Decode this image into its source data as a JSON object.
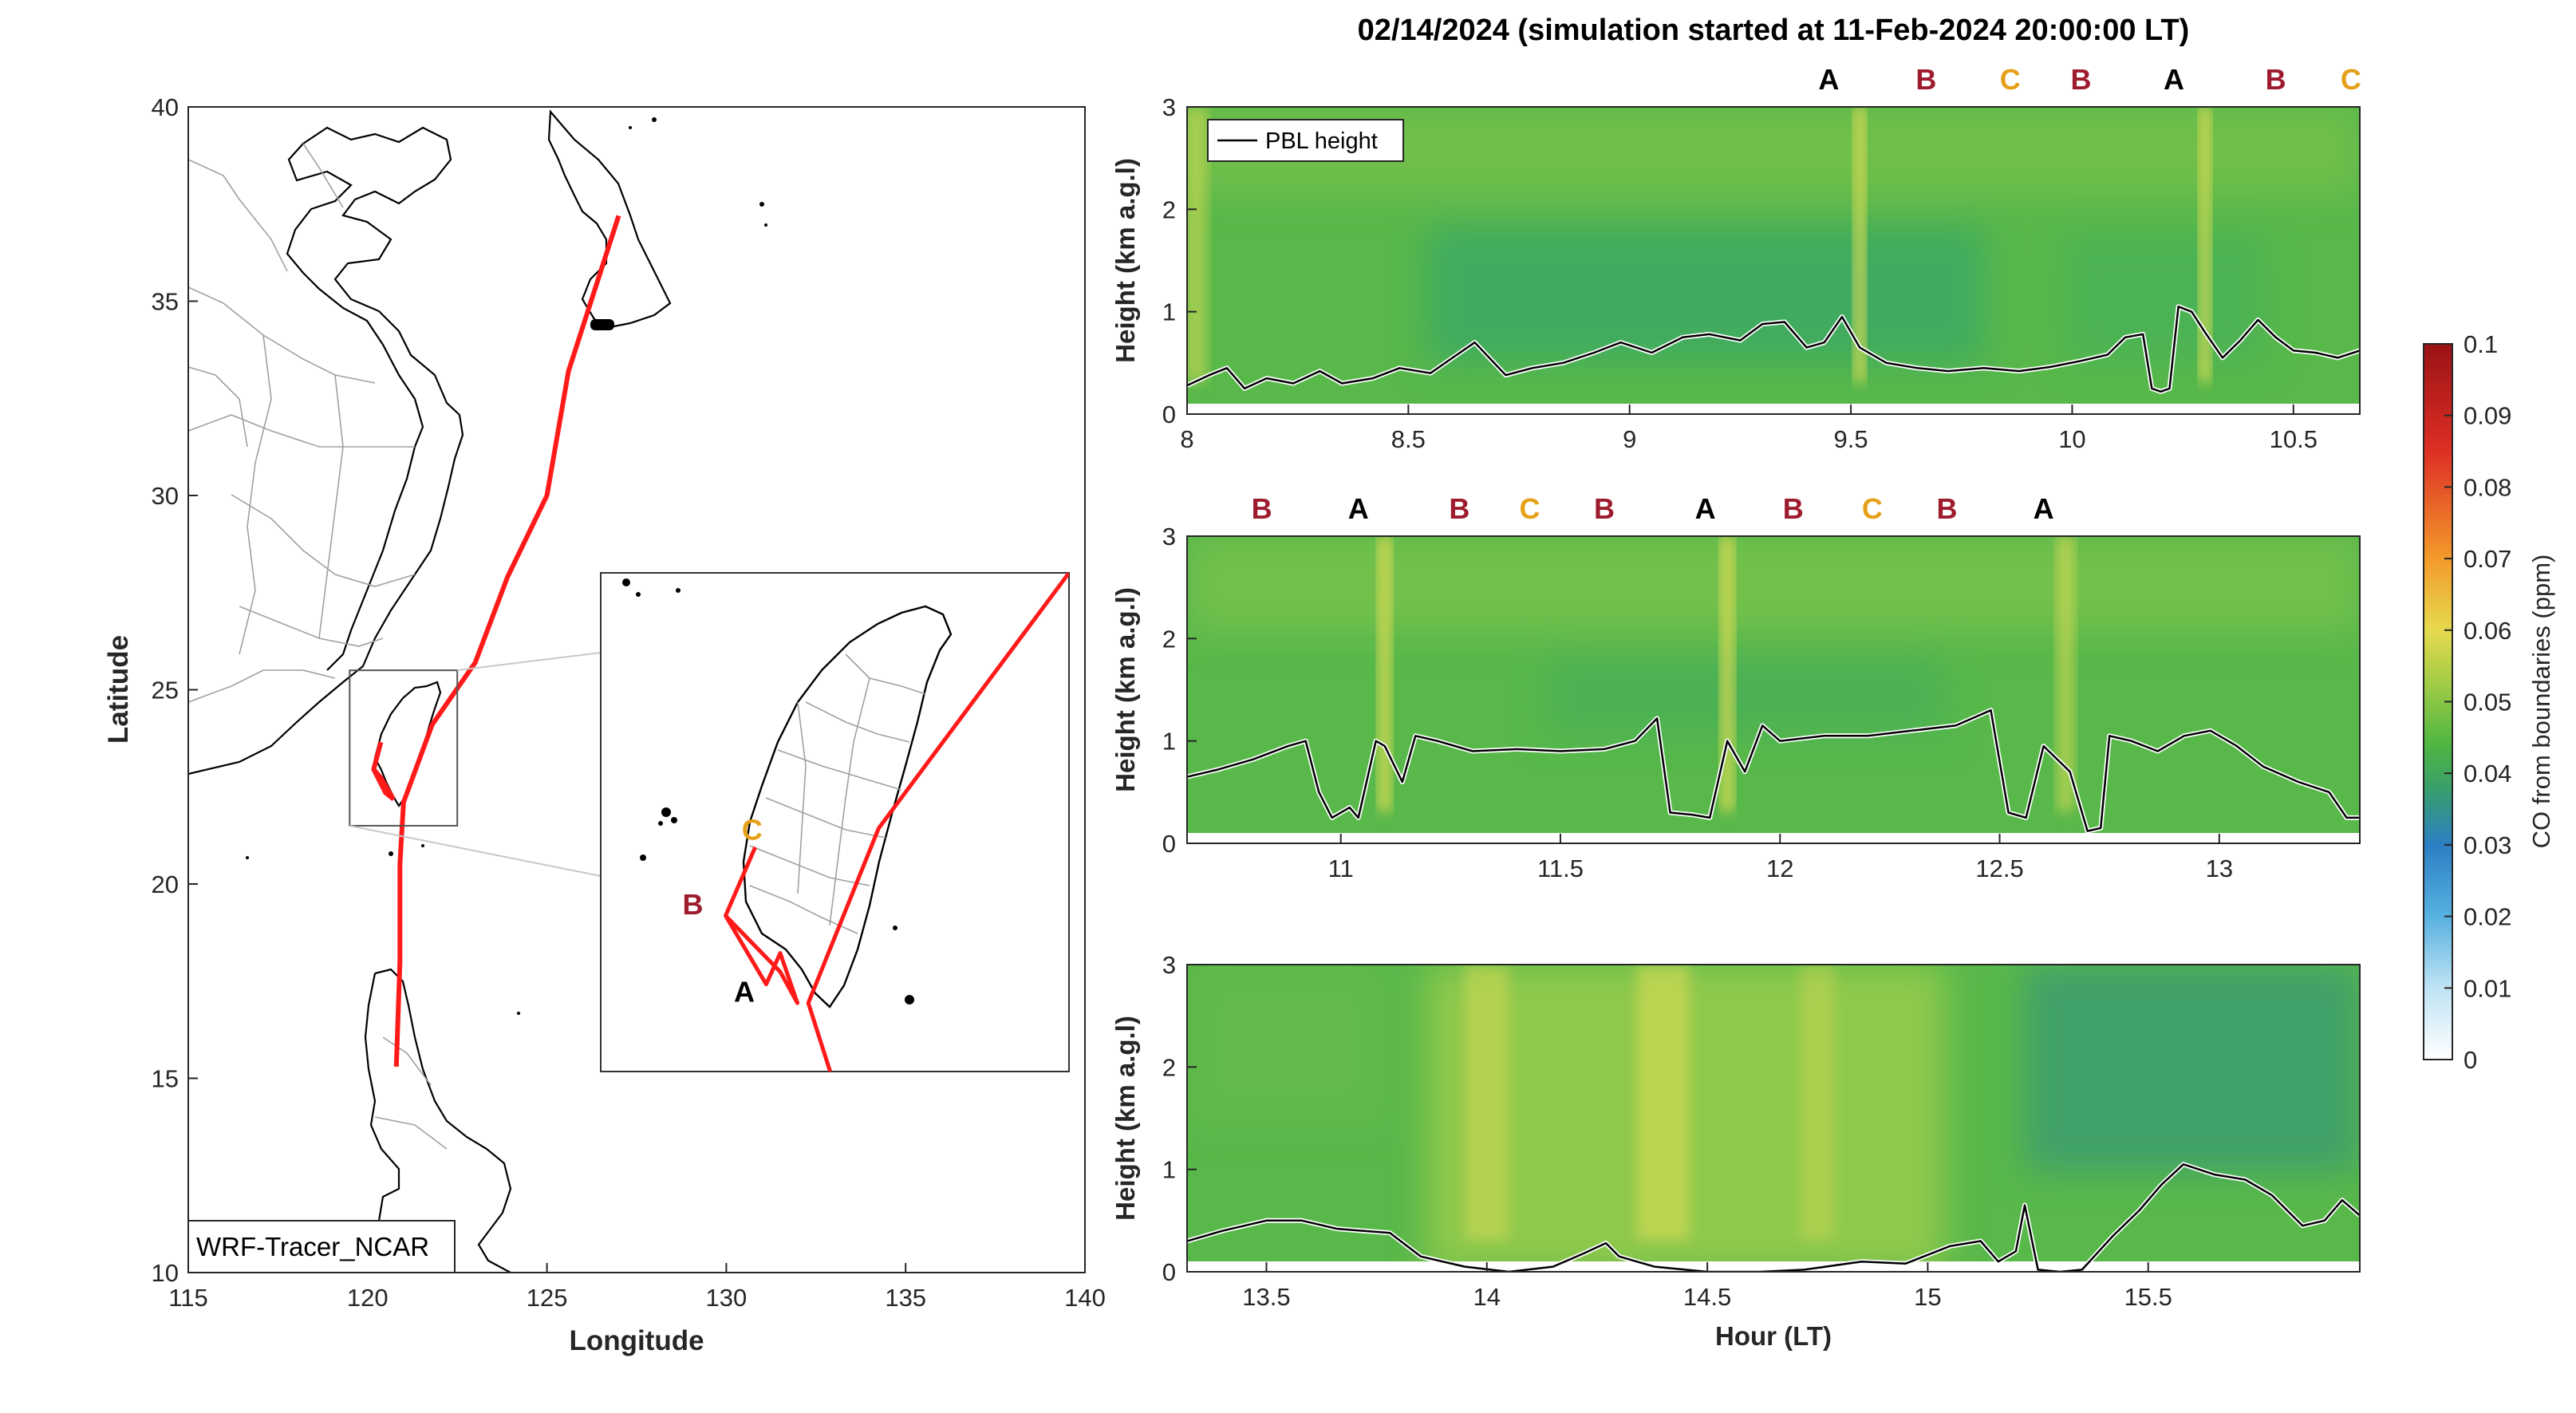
{
  "title": "02/14/2024 (simulation started at 11-Feb-2024 20:00:00 LT)",
  "colors": {
    "A": "#000000",
    "B": "#9e1b2e",
    "C": "#e6a11a",
    "track": "#ff1a1a",
    "pbl": "#000000"
  },
  "chart_data": [
    {
      "type": "map",
      "xlabel": "Longitude",
      "ylabel": "Latitude",
      "xlim": [
        115,
        140
      ],
      "ylim": [
        10,
        40
      ],
      "xticks": [
        "115",
        "120",
        "125",
        "130",
        "135",
        "140"
      ],
      "yticks": [
        "10",
        "15",
        "20",
        "25",
        "30",
        "35",
        "40"
      ],
      "label_box": "WRF-Tracer_NCAR",
      "inset_extent": {
        "lon": [
          119.5,
          122.5
        ],
        "lat": [
          21.5,
          25.5
        ]
      },
      "track": [
        [
          127.0,
          37.2
        ],
        [
          125.6,
          33.2
        ],
        [
          125.0,
          30.0
        ],
        [
          123.9,
          27.9
        ],
        [
          123.0,
          25.7
        ],
        [
          121.8,
          24.1
        ],
        [
          121.0,
          22.1
        ],
        [
          120.9,
          20.5
        ],
        [
          120.9,
          18.0
        ],
        [
          120.8,
          15.3
        ]
      ],
      "track_taiwan": [
        [
          120.37,
          23.65
        ],
        [
          120.17,
          22.95
        ],
        [
          120.38,
          22.72
        ],
        [
          120.72,
          22.18
        ]
      ],
      "track_taiwan_2": [
        [
          120.17,
          22.95
        ],
        [
          120.5,
          22.35
        ],
        [
          120.73,
          22.18
        ]
      ],
      "inset_track": [
        [
          122.5,
          25.5
        ],
        [
          121.28,
          23.45
        ],
        [
          120.83,
          22.05
        ],
        [
          120.97,
          21.5
        ]
      ],
      "inset_track_2": [
        [
          120.49,
          23.3
        ],
        [
          120.3,
          22.75
        ],
        [
          120.65,
          22.3
        ],
        [
          120.76,
          22.05
        ],
        [
          120.65,
          22.45
        ],
        [
          120.56,
          22.2
        ],
        [
          120.3,
          22.75
        ]
      ],
      "inset_labels": [
        {
          "text": "C",
          "lon": 120.47,
          "lat": 23.36,
          "cls": "C"
        },
        {
          "text": "B",
          "lon": 120.09,
          "lat": 22.76,
          "cls": "B"
        },
        {
          "text": "A",
          "lon": 120.42,
          "lat": 22.06,
          "cls": "A"
        }
      ]
    },
    {
      "type": "heatmap",
      "xlim": [
        8,
        10.65
      ],
      "ylim": [
        0,
        3
      ],
      "xticks": [
        "8",
        "8.5",
        "9",
        "9.5",
        "10",
        "10.5"
      ],
      "yticks": [
        "0",
        "1",
        "2",
        "3"
      ],
      "ylabel": "Height (km a.g.l)",
      "legend": "PBL height",
      "markers": [
        {
          "x": 9.45,
          "t": "A"
        },
        {
          "x": 9.67,
          "t": "B"
        },
        {
          "x": 9.86,
          "t": "C"
        },
        {
          "x": 10.02,
          "t": "B"
        },
        {
          "x": 10.23,
          "t": "A"
        },
        {
          "x": 10.46,
          "t": "B"
        },
        {
          "x": 10.63,
          "t": "C"
        }
      ],
      "plumes": [
        {
          "x": 8.02,
          "w": 0.05,
          "s": 0.55
        },
        {
          "x": 9.52,
          "w": 0.025,
          "s": 0.9
        },
        {
          "x": 10.3,
          "w": 0.025,
          "s": 0.9
        }
      ],
      "pbl": [
        [
          8.0,
          0.28
        ],
        [
          8.05,
          0.38
        ],
        [
          8.09,
          0.45
        ],
        [
          8.13,
          0.25
        ],
        [
          8.18,
          0.35
        ],
        [
          8.24,
          0.3
        ],
        [
          8.3,
          0.42
        ],
        [
          8.35,
          0.3
        ],
        [
          8.42,
          0.35
        ],
        [
          8.48,
          0.45
        ],
        [
          8.55,
          0.4
        ],
        [
          8.6,
          0.55
        ],
        [
          8.65,
          0.7
        ],
        [
          8.72,
          0.38
        ],
        [
          8.78,
          0.45
        ],
        [
          8.85,
          0.5
        ],
        [
          8.92,
          0.6
        ],
        [
          8.98,
          0.7
        ],
        [
          9.05,
          0.6
        ],
        [
          9.12,
          0.75
        ],
        [
          9.18,
          0.78
        ],
        [
          9.25,
          0.72
        ],
        [
          9.3,
          0.88
        ],
        [
          9.35,
          0.9
        ],
        [
          9.4,
          0.65
        ],
        [
          9.44,
          0.7
        ],
        [
          9.48,
          0.95
        ],
        [
          9.52,
          0.65
        ],
        [
          9.58,
          0.5
        ],
        [
          9.65,
          0.45
        ],
        [
          9.72,
          0.42
        ],
        [
          9.8,
          0.45
        ],
        [
          9.88,
          0.42
        ],
        [
          9.95,
          0.46
        ],
        [
          10.02,
          0.52
        ],
        [
          10.08,
          0.58
        ],
        [
          10.12,
          0.75
        ],
        [
          10.16,
          0.78
        ],
        [
          10.18,
          0.25
        ],
        [
          10.2,
          0.22
        ],
        [
          10.22,
          0.25
        ],
        [
          10.24,
          1.05
        ],
        [
          10.27,
          1.0
        ],
        [
          10.3,
          0.8
        ],
        [
          10.34,
          0.55
        ],
        [
          10.38,
          0.72
        ],
        [
          10.42,
          0.92
        ],
        [
          10.46,
          0.75
        ],
        [
          10.5,
          0.62
        ],
        [
          10.55,
          0.6
        ],
        [
          10.6,
          0.55
        ],
        [
          10.65,
          0.62
        ]
      ]
    },
    {
      "type": "heatmap",
      "xlim": [
        10.65,
        13.32
      ],
      "ylim": [
        0,
        3
      ],
      "xticks": [
        "11",
        "11.5",
        "12",
        "12.5",
        "13"
      ],
      "yticks": [
        "0",
        "1",
        "2",
        "3"
      ],
      "ylabel": "Height (km a.g.l)",
      "markers": [
        {
          "x": 10.82,
          "t": "B"
        },
        {
          "x": 11.04,
          "t": "A"
        },
        {
          "x": 11.27,
          "t": "B"
        },
        {
          "x": 11.43,
          "t": "C"
        },
        {
          "x": 11.6,
          "t": "B"
        },
        {
          "x": 11.83,
          "t": "A"
        },
        {
          "x": 12.03,
          "t": "B"
        },
        {
          "x": 12.21,
          "t": "C"
        },
        {
          "x": 12.38,
          "t": "B"
        },
        {
          "x": 12.6,
          "t": "A"
        }
      ],
      "plumes": [
        {
          "x": 11.1,
          "w": 0.03,
          "s": 0.85
        },
        {
          "x": 11.88,
          "w": 0.03,
          "s": 0.85
        },
        {
          "x": 12.65,
          "w": 0.04,
          "s": 0.6
        }
      ],
      "pbl": [
        [
          10.65,
          0.65
        ],
        [
          10.72,
          0.72
        ],
        [
          10.8,
          0.82
        ],
        [
          10.88,
          0.95
        ],
        [
          10.92,
          1.0
        ],
        [
          10.95,
          0.5
        ],
        [
          10.98,
          0.25
        ],
        [
          11.02,
          0.35
        ],
        [
          11.04,
          0.25
        ],
        [
          11.08,
          1.0
        ],
        [
          11.1,
          0.95
        ],
        [
          11.14,
          0.6
        ],
        [
          11.17,
          1.05
        ],
        [
          11.22,
          1.0
        ],
        [
          11.3,
          0.9
        ],
        [
          11.4,
          0.92
        ],
        [
          11.5,
          0.9
        ],
        [
          11.6,
          0.92
        ],
        [
          11.67,
          1.0
        ],
        [
          11.72,
          1.22
        ],
        [
          11.75,
          0.3
        ],
        [
          11.8,
          0.28
        ],
        [
          11.84,
          0.25
        ],
        [
          11.88,
          1.0
        ],
        [
          11.92,
          0.7
        ],
        [
          11.96,
          1.15
        ],
        [
          12.0,
          1.0
        ],
        [
          12.1,
          1.05
        ],
        [
          12.2,
          1.05
        ],
        [
          12.3,
          1.1
        ],
        [
          12.4,
          1.15
        ],
        [
          12.48,
          1.3
        ],
        [
          12.52,
          0.3
        ],
        [
          12.56,
          0.25
        ],
        [
          12.6,
          0.95
        ],
        [
          12.66,
          0.7
        ],
        [
          12.7,
          0.12
        ],
        [
          12.73,
          0.15
        ],
        [
          12.75,
          1.05
        ],
        [
          12.8,
          1.0
        ],
        [
          12.86,
          0.9
        ],
        [
          12.92,
          1.05
        ],
        [
          12.98,
          1.1
        ],
        [
          13.04,
          0.95
        ],
        [
          13.1,
          0.75
        ],
        [
          13.18,
          0.6
        ],
        [
          13.25,
          0.5
        ],
        [
          13.29,
          0.25
        ],
        [
          13.32,
          0.25
        ]
      ]
    },
    {
      "type": "heatmap",
      "xlim": [
        13.32,
        15.98
      ],
      "ylim": [
        0,
        3
      ],
      "xticks": [
        "13.5",
        "14",
        "14.5",
        "15",
        "15.5"
      ],
      "yticks": [
        "0",
        "1",
        "2",
        "3"
      ],
      "ylabel": "Height (km a.g.l)",
      "xlabel": "Hour (LT)",
      "plumes": [
        {
          "x": 14.0,
          "w": 0.1,
          "s": 0.45
        },
        {
          "x": 14.4,
          "w": 0.12,
          "s": 0.55
        },
        {
          "x": 14.75,
          "w": 0.08,
          "s": 0.35
        }
      ],
      "pbl": [
        [
          13.32,
          0.3
        ],
        [
          13.4,
          0.4
        ],
        [
          13.5,
          0.5
        ],
        [
          13.58,
          0.5
        ],
        [
          13.66,
          0.42
        ],
        [
          13.72,
          0.4
        ],
        [
          13.78,
          0.38
        ],
        [
          13.85,
          0.15
        ],
        [
          13.95,
          0.05
        ],
        [
          14.05,
          0.0
        ],
        [
          14.15,
          0.05
        ],
        [
          14.22,
          0.18
        ],
        [
          14.27,
          0.28
        ],
        [
          14.3,
          0.15
        ],
        [
          14.38,
          0.05
        ],
        [
          14.5,
          0.0
        ],
        [
          14.62,
          0.0
        ],
        [
          14.72,
          0.02
        ],
        [
          14.85,
          0.1
        ],
        [
          14.95,
          0.08
        ],
        [
          15.05,
          0.25
        ],
        [
          15.12,
          0.3
        ],
        [
          15.16,
          0.1
        ],
        [
          15.2,
          0.2
        ],
        [
          15.22,
          0.65
        ],
        [
          15.25,
          0.02
        ],
        [
          15.3,
          0.0
        ],
        [
          15.35,
          0.02
        ],
        [
          15.42,
          0.35
        ],
        [
          15.48,
          0.6
        ],
        [
          15.53,
          0.85
        ],
        [
          15.58,
          1.05
        ],
        [
          15.65,
          0.95
        ],
        [
          15.72,
          0.9
        ],
        [
          15.78,
          0.75
        ],
        [
          15.85,
          0.45
        ],
        [
          15.9,
          0.5
        ],
        [
          15.94,
          0.7
        ],
        [
          15.98,
          0.55
        ]
      ]
    }
  ],
  "colorbar": {
    "label": "CO from boundaries (ppm)",
    "range": [
      0,
      0.1
    ],
    "ticks": [
      "0",
      "0.01",
      "0.02",
      "0.03",
      "0.04",
      "0.05",
      "0.06",
      "0.07",
      "0.08",
      "0.09",
      "0.1"
    ],
    "stops": [
      "#ffffff",
      "#bfe3f4",
      "#57b1e0",
      "#2c7fc3",
      "#3aa35c",
      "#4fb641",
      "#d6dd4d",
      "#f6cf40",
      "#f08e2a",
      "#de2f25",
      "#9a1215"
    ]
  }
}
